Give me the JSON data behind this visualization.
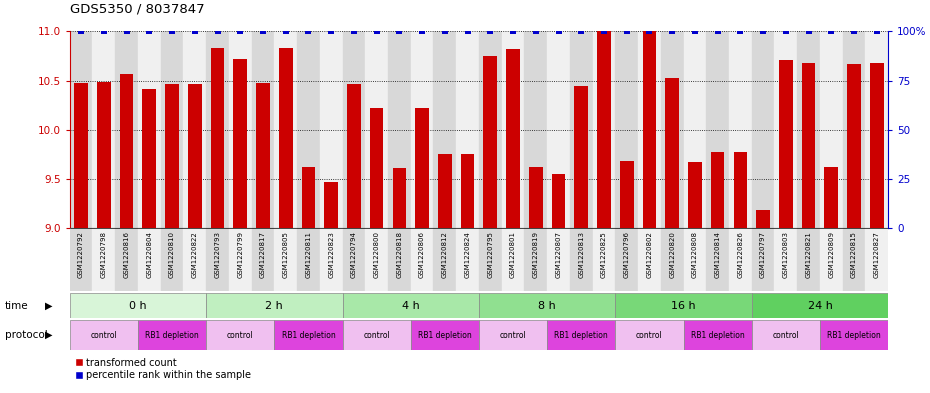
{
  "title": "GDS5350 / 8037847",
  "sample_labels": [
    "GSM1220792",
    "GSM1220798",
    "GSM1220816",
    "GSM1220804",
    "GSM1220810",
    "GSM1220822",
    "GSM1220793",
    "GSM1220799",
    "GSM1220817",
    "GSM1220805",
    "GSM1220811",
    "GSM1220823",
    "GSM1220794",
    "GSM1220800",
    "GSM1220818",
    "GSM1220806",
    "GSM1220812",
    "GSM1220824",
    "GSM1220795",
    "GSM1220801",
    "GSM1220819",
    "GSM1220807",
    "GSM1220813",
    "GSM1220825",
    "GSM1220796",
    "GSM1220802",
    "GSM1220820",
    "GSM1220808",
    "GSM1220814",
    "GSM1220826",
    "GSM1220797",
    "GSM1220803",
    "GSM1220821",
    "GSM1220809",
    "GSM1220815",
    "GSM1220827"
  ],
  "bar_values": [
    10.48,
    10.49,
    10.57,
    10.41,
    10.46,
    10.46,
    10.83,
    10.72,
    10.48,
    10.83,
    9.62,
    9.47,
    10.46,
    10.22,
    9.61,
    10.22,
    9.75,
    9.75,
    10.75,
    10.82,
    9.62,
    9.55,
    10.44,
    11.0,
    9.68,
    11.0,
    10.53,
    9.67,
    9.77,
    9.77,
    9.18,
    10.71,
    10.68,
    9.62,
    10.67,
    10.68
  ],
  "blue_values": [
    100,
    100,
    100,
    100,
    100,
    100,
    100,
    100,
    100,
    100,
    100,
    100,
    100,
    100,
    100,
    100,
    100,
    100,
    100,
    100,
    100,
    100,
    100,
    100,
    100,
    100,
    100,
    100,
    100,
    100,
    100,
    100,
    100,
    100,
    100,
    100
  ],
  "time_groups": [
    {
      "label": "0 h",
      "start": 0,
      "end": 6,
      "color": "#d8f5d8"
    },
    {
      "label": "2 h",
      "start": 6,
      "end": 12,
      "color": "#c0efc0"
    },
    {
      "label": "4 h",
      "start": 12,
      "end": 18,
      "color": "#a8e8a8"
    },
    {
      "label": "8 h",
      "start": 18,
      "end": 24,
      "color": "#90e090"
    },
    {
      "label": "16 h",
      "start": 24,
      "end": 30,
      "color": "#78d878"
    },
    {
      "label": "24 h",
      "start": 30,
      "end": 36,
      "color": "#60d060"
    }
  ],
  "protocol_groups": [
    {
      "label": "control",
      "start": 0,
      "end": 3,
      "color": "#f0c0f0"
    },
    {
      "label": "RB1 depletion",
      "start": 3,
      "end": 6,
      "color": "#dd44dd"
    },
    {
      "label": "control",
      "start": 6,
      "end": 9,
      "color": "#f0c0f0"
    },
    {
      "label": "RB1 depletion",
      "start": 9,
      "end": 12,
      "color": "#dd44dd"
    },
    {
      "label": "control",
      "start": 12,
      "end": 15,
      "color": "#f0c0f0"
    },
    {
      "label": "RB1 depletion",
      "start": 15,
      "end": 18,
      "color": "#dd44dd"
    },
    {
      "label": "control",
      "start": 18,
      "end": 21,
      "color": "#f0c0f0"
    },
    {
      "label": "RB1 depletion",
      "start": 21,
      "end": 24,
      "color": "#dd44dd"
    },
    {
      "label": "control",
      "start": 24,
      "end": 27,
      "color": "#f0c0f0"
    },
    {
      "label": "RB1 depletion",
      "start": 27,
      "end": 30,
      "color": "#dd44dd"
    },
    {
      "label": "control",
      "start": 30,
      "end": 33,
      "color": "#f0c0f0"
    },
    {
      "label": "RB1 depletion",
      "start": 33,
      "end": 36,
      "color": "#dd44dd"
    }
  ],
  "bar_color": "#cc0000",
  "blue_color": "#0000cc",
  "col_colors": [
    "#d8d8d8",
    "#f0f0f0"
  ],
  "ylim_left": [
    9.0,
    11.0
  ],
  "ylim_right": [
    0,
    100
  ],
  "yticks_left": [
    9.0,
    9.5,
    10.0,
    10.5,
    11.0
  ],
  "yticks_right": [
    0,
    25,
    50,
    75,
    100
  ],
  "bar_width": 0.6,
  "legend_items": [
    {
      "label": "transformed count",
      "color": "#cc0000"
    },
    {
      "label": "percentile rank within the sample",
      "color": "#0000cc"
    }
  ]
}
